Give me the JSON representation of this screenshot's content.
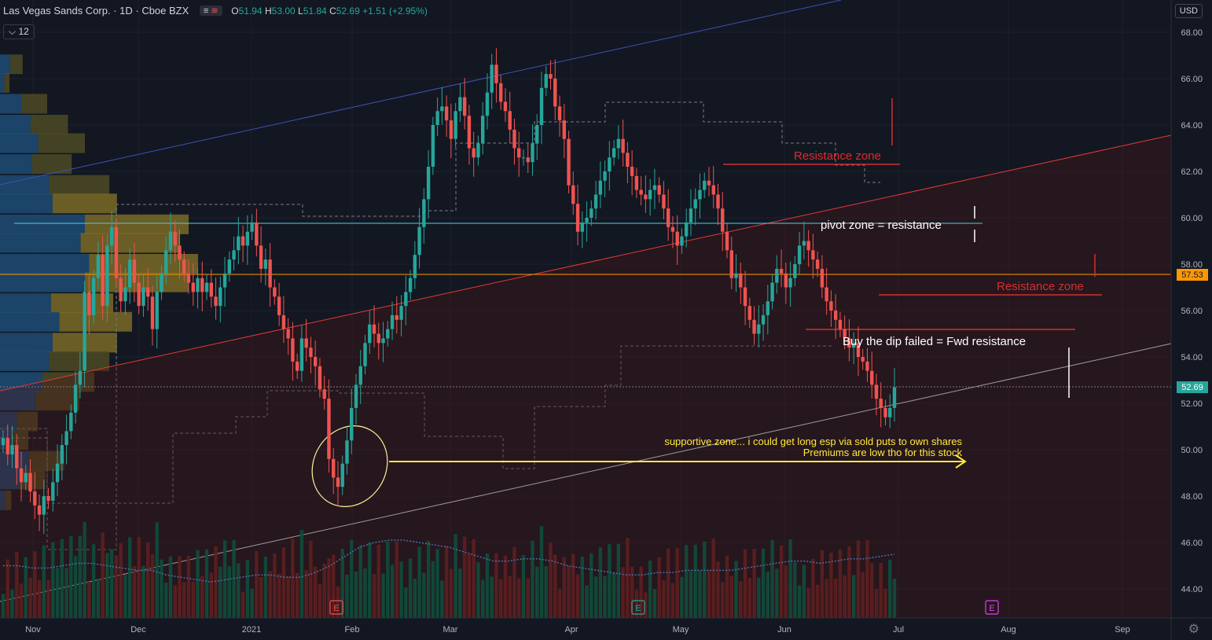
{
  "header": {
    "symbol": "Las Vegas Sands Corp. · 1D · Cboe BZX",
    "open_label": "O",
    "open": "51.94",
    "high_label": "H",
    "high": "53.00",
    "low_label": "L",
    "low": "51.84",
    "close_label": "C",
    "close": "52.69",
    "change": "+1.51 (+2.95%)",
    "toggle_a": "≡",
    "toggle_b": "≋"
  },
  "indicator": {
    "label": "12",
    "icon": "chevron-down-icon"
  },
  "currency": "USD",
  "colors": {
    "up": "#26a69a",
    "down": "#ef5350",
    "bg": "#131722",
    "accent_orange": "#ff9800"
  },
  "chart_data": {
    "type": "candlestick",
    "price_axis": {
      "ticks": [
        "68.00",
        "66.00",
        "64.00",
        "62.00",
        "60.00",
        "58.00",
        "56.00",
        "54.00",
        "52.00",
        "50.00",
        "48.00",
        "46.00",
        "44.00"
      ],
      "ylim": [
        43,
        69
      ]
    },
    "time_axis": {
      "labels": [
        "Nov",
        "Dec",
        "2021",
        "Feb",
        "Mar",
        "Apr",
        "May",
        "Jun",
        "Jul",
        "Aug",
        "Sep"
      ]
    },
    "last_price_label": "52.69",
    "level_label": "57.53",
    "closes": [
      50.5,
      49.8,
      50.2,
      49.2,
      48.6,
      49.0,
      48.2,
      47.6,
      47.2,
      48.0,
      47.8,
      48.6,
      49.4,
      50.2,
      50.8,
      51.6,
      52.8,
      53.4,
      56.8,
      55.8,
      57.4,
      58.4,
      56.2,
      58.8,
      59.6,
      57.4,
      56.4,
      57.0,
      58.2,
      57.2,
      56.2,
      57.0,
      56.6,
      55.2,
      56.8,
      57.6,
      58.6,
      59.4,
      58.8,
      58.2,
      57.6,
      57.2,
      56.8,
      57.4,
      56.8,
      57.2,
      56.6,
      56.2,
      57.0,
      57.6,
      58.2,
      58.6,
      59.2,
      58.8,
      59.4,
      59.8,
      58.8,
      57.8,
      58.2,
      57.0,
      56.6,
      55.8,
      55.2,
      54.8,
      53.8,
      53.4,
      54.8,
      54.4,
      54.0,
      53.6,
      52.6,
      52.2,
      49.6,
      48.8,
      48.4,
      49.4,
      50.4,
      51.8,
      52.8,
      53.6,
      54.6,
      55.4,
      55.0,
      54.6,
      54.8,
      55.2,
      55.8,
      55.6,
      56.2,
      56.8,
      57.4,
      58.4,
      59.6,
      60.8,
      62.2,
      64.0,
      64.6,
      64.8,
      64.2,
      63.4,
      64.6,
      65.2,
      64.4,
      63.0,
      62.6,
      63.2,
      64.4,
      65.4,
      66.6,
      65.8,
      65.0,
      64.6,
      63.8,
      63.0,
      62.6,
      62.6,
      62.4,
      63.2,
      64.0,
      65.6,
      66.2,
      66.0,
      64.8,
      64.2,
      63.4,
      61.4,
      60.6,
      59.4,
      59.8,
      60.0,
      60.4,
      61.0,
      61.6,
      62.0,
      62.6,
      63.0,
      63.4,
      62.8,
      62.2,
      61.8,
      61.2,
      61.0,
      60.8,
      61.2,
      61.4,
      61.0,
      60.4,
      59.6,
      59.4,
      58.8,
      59.2,
      59.8,
      60.4,
      60.8,
      61.2,
      61.6,
      61.4,
      61.0,
      60.4,
      59.4,
      58.6,
      57.4,
      57.6,
      57.0,
      56.2,
      55.6,
      55.0,
      55.4,
      55.8,
      56.4,
      57.2,
      57.8,
      57.6,
      57.0,
      57.4,
      58.0,
      58.8,
      59.0,
      58.6,
      58.2,
      57.8,
      57.0,
      56.4,
      56.0,
      55.6,
      55.2,
      54.8,
      54.4,
      54.6,
      54.0,
      53.8,
      53.4,
      52.8,
      52.2,
      51.8,
      51.4,
      51.8,
      52.69
    ],
    "volume_avg": [
      45,
      45,
      44.9,
      44.9,
      45,
      45.1,
      45.1,
      45,
      44.9,
      44.8,
      44.8,
      44.6,
      44.5,
      44.4,
      44.3,
      44.4,
      44.5,
      44.6,
      44.6,
      44.5,
      44.5,
      44.7,
      45,
      45.4,
      45.8,
      46,
      46.1,
      46.1,
      46,
      45.9,
      45.8,
      45.6,
      45.4,
      45.2,
      45.2,
      45.3,
      45.3,
      45.2,
      45,
      44.9,
      44.8,
      44.7,
      44.6,
      44.6,
      44.7,
      44.7,
      44.8,
      44.8,
      44.8,
      44.8,
      44.9,
      45,
      45.1,
      45.2,
      45.2,
      45.1,
      45.2,
      45.3,
      45.3,
      45.4,
      45.5
    ],
    "volume_profile": [
      {
        "price": 66.6,
        "vol": 12
      },
      {
        "price": 65.8,
        "vol": 5
      },
      {
        "price": 64.9,
        "vol": 25
      },
      {
        "price": 64.0,
        "vol": 36
      },
      {
        "price": 63.2,
        "vol": 45
      },
      {
        "price": 62.3,
        "vol": 38
      },
      {
        "price": 61.4,
        "vol": 58
      },
      {
        "price": 60.6,
        "vol": 62
      },
      {
        "price": 59.7,
        "vol": 100
      },
      {
        "price": 58.9,
        "vol": 95
      },
      {
        "price": 58.0,
        "vol": 105
      },
      {
        "price": 57.2,
        "vol": 100
      },
      {
        "price": 56.3,
        "vol": 60
      },
      {
        "price": 55.5,
        "vol": 70
      },
      {
        "price": 54.6,
        "vol": 62
      },
      {
        "price": 53.8,
        "vol": 58
      },
      {
        "price": 52.9,
        "vol": 50
      },
      {
        "price": 52.1,
        "vol": 42
      },
      {
        "price": 51.2,
        "vol": 20
      },
      {
        "price": 50.4,
        "vol": 15
      },
      {
        "price": 49.5,
        "vol": 34
      },
      {
        "price": 48.7,
        "vol": 24
      },
      {
        "price": 47.8,
        "vol": 6
      }
    ],
    "annotations": {
      "resistance_zone_1": "Resistance zone",
      "pivot_zone": "pivot zone = resistance",
      "resistance_zone_2": "Resistance zone",
      "buy_dip": "Buy the dip failed = Fwd resistance",
      "supportive_zone": "supportive zone... i could get long esp via sold puts to own shares",
      "premiums": "Premiums are low tho for this stock"
    },
    "earnings_markers": [
      "E",
      "E",
      "E"
    ]
  }
}
